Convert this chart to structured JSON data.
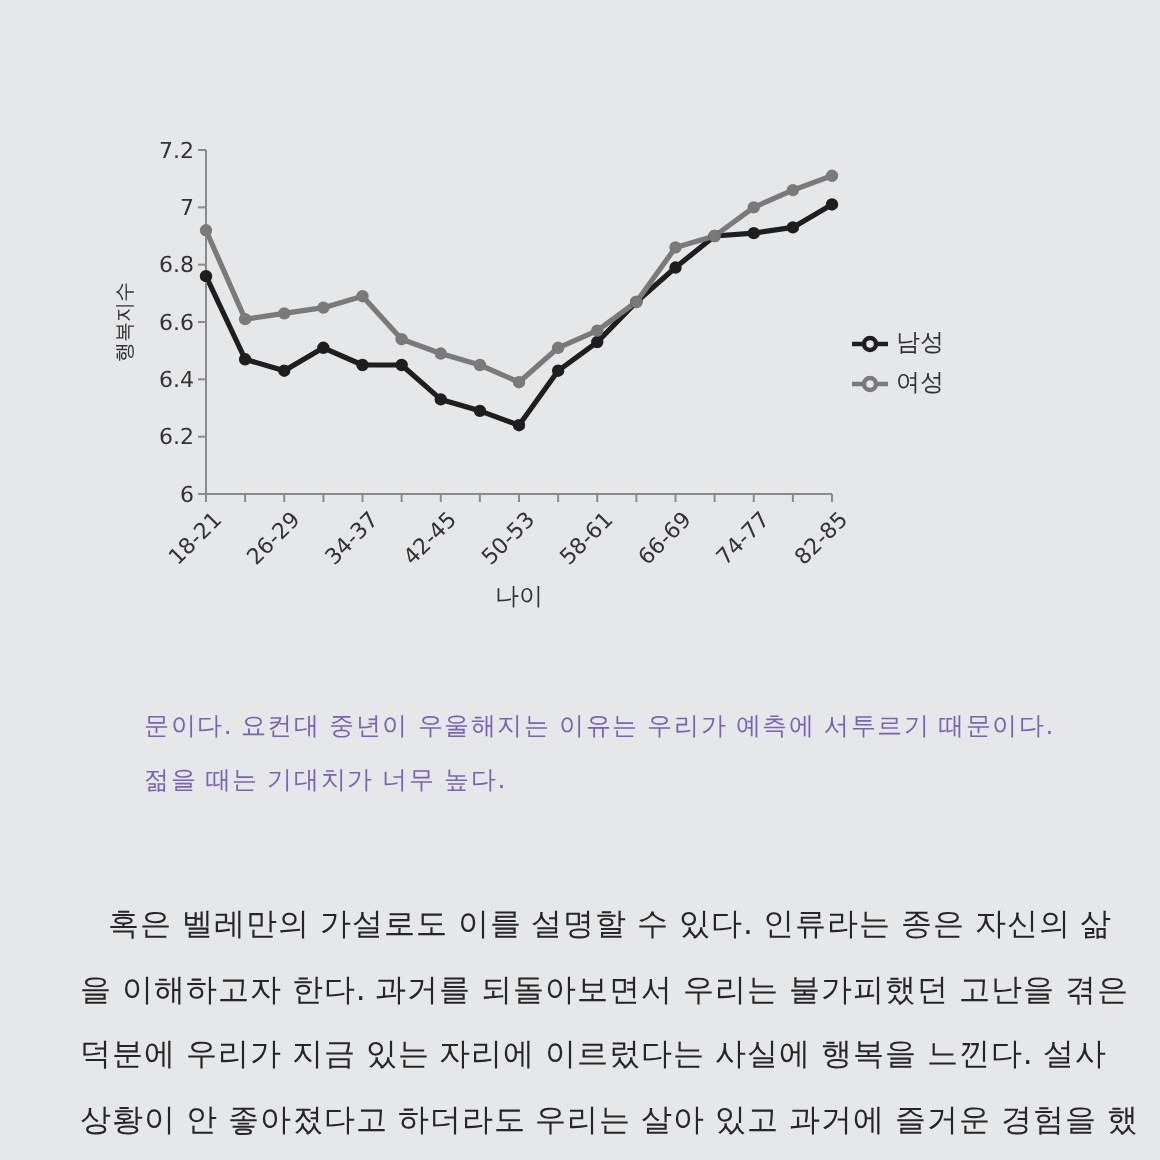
{
  "chart_data": {
    "type": "line",
    "categories": [
      "18-21",
      null,
      "26-29",
      null,
      "34-37",
      null,
      "42-45",
      null,
      "50-53",
      null,
      "58-61",
      null,
      "66-69",
      null,
      "74-77",
      null,
      "82-85"
    ],
    "series": [
      {
        "name": "남성",
        "color": "#1e1e1e",
        "values": [
          6.76,
          6.47,
          6.43,
          6.51,
          6.45,
          6.45,
          6.33,
          6.29,
          6.24,
          6.43,
          6.53,
          6.67,
          6.79,
          6.9,
          6.91,
          6.93,
          7.01
        ]
      },
      {
        "name": "여성",
        "color": "#7a7a7a",
        "values": [
          6.92,
          6.61,
          6.63,
          6.65,
          6.69,
          6.54,
          6.49,
          6.45,
          6.39,
          6.51,
          6.57,
          6.67,
          6.86,
          6.9,
          7.0,
          7.06,
          7.11
        ]
      }
    ],
    "ylim": [
      6,
      7.2
    ],
    "yticks": [
      6,
      6.2,
      6.4,
      6.6,
      6.8,
      7,
      7.2
    ],
    "xlabel": "나이",
    "ylabel": "행복지수",
    "legend": "right",
    "marker": "circle",
    "annotations": [
      "문이다. 요컨대 중년이 우울해지는 이유는 우리가 예측에 서투르기 때문이다.",
      "젊을 때는 기대치가 너무 높다.",
      "혹은 벨레만의 가설로도 이를 설명할 수 있다. 인류라는 종은 자신의 삶",
      "을 이해하고자 한다. 과거를 되돌아보면서 우리는 불가피했던 고난을 겪은",
      "덕분에 우리가 지금 있는 자리에 이르렀다는 사실에  행복을 느낀다. 설사",
      "상황이 안 좋아졌다고 하더라도 우리는 살아 있고 과거에 즐거운 경험을 했"
    ]
  }
}
